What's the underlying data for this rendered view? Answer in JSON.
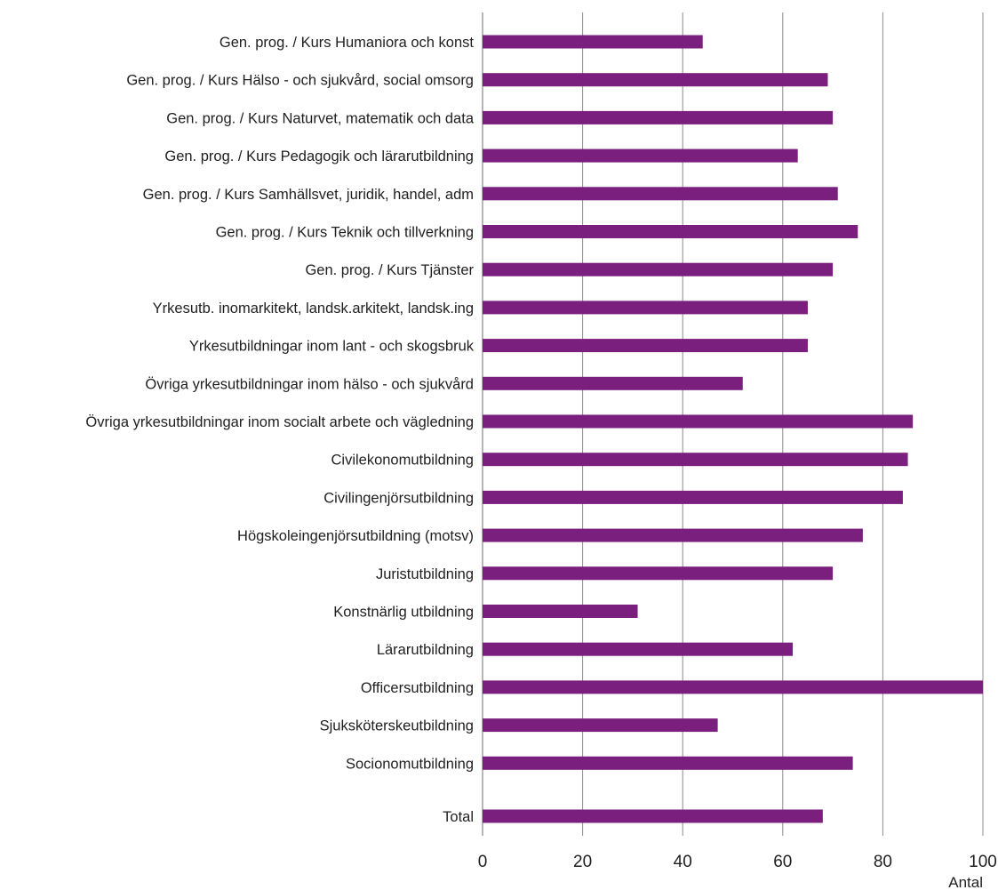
{
  "chart_data": {
    "type": "bar",
    "orientation": "horizontal",
    "categories": [
      "Gen. prog. / Kurs Humaniora och konst",
      "Gen. prog. / Kurs Hälso - och sjukvård, social omsorg",
      "Gen. prog. / Kurs Naturvet, matematik och data",
      "Gen. prog. / Kurs Pedagogik och lärarutbildning",
      "Gen. prog. / Kurs Samhällsvet, juridik, handel, adm",
      "Gen. prog. / Kurs Teknik och tillverkning",
      "Gen. prog. / Kurs Tjänster",
      "Yrkesutb. inomarkitekt, landsk.arkitekt, landsk.ing",
      "Yrkesutbildningar inom lant - och skogsbruk",
      "Övriga yrkesutbildningar inom hälso - och sjukvård",
      "Övriga yrkesutbildningar inom socialt arbete och vägledning",
      "Civilekonomutbildning",
      "Civilingenjörsutbildning",
      "Högskoleingenjörsutbildning (motsv)",
      "Juristutbildning",
      "Konstnärlig utbildning",
      "Lärarutbildning",
      "Officersutbildning",
      "Sjuksköterskeutbildning",
      "Socionomutbildning",
      "Total"
    ],
    "values": [
      44,
      69,
      70,
      63,
      71,
      75,
      70,
      65,
      65,
      52,
      86,
      85,
      84,
      76,
      70,
      31,
      62,
      100,
      47,
      74,
      68
    ],
    "xlabel": "Antal",
    "ylabel": "",
    "xlim": [
      0,
      100
    ],
    "xticks": [
      "0",
      "20",
      "40",
      "60",
      "80",
      "100"
    ],
    "grid": "vertical",
    "legend": "none",
    "bar_color": "#7b1f7e"
  }
}
